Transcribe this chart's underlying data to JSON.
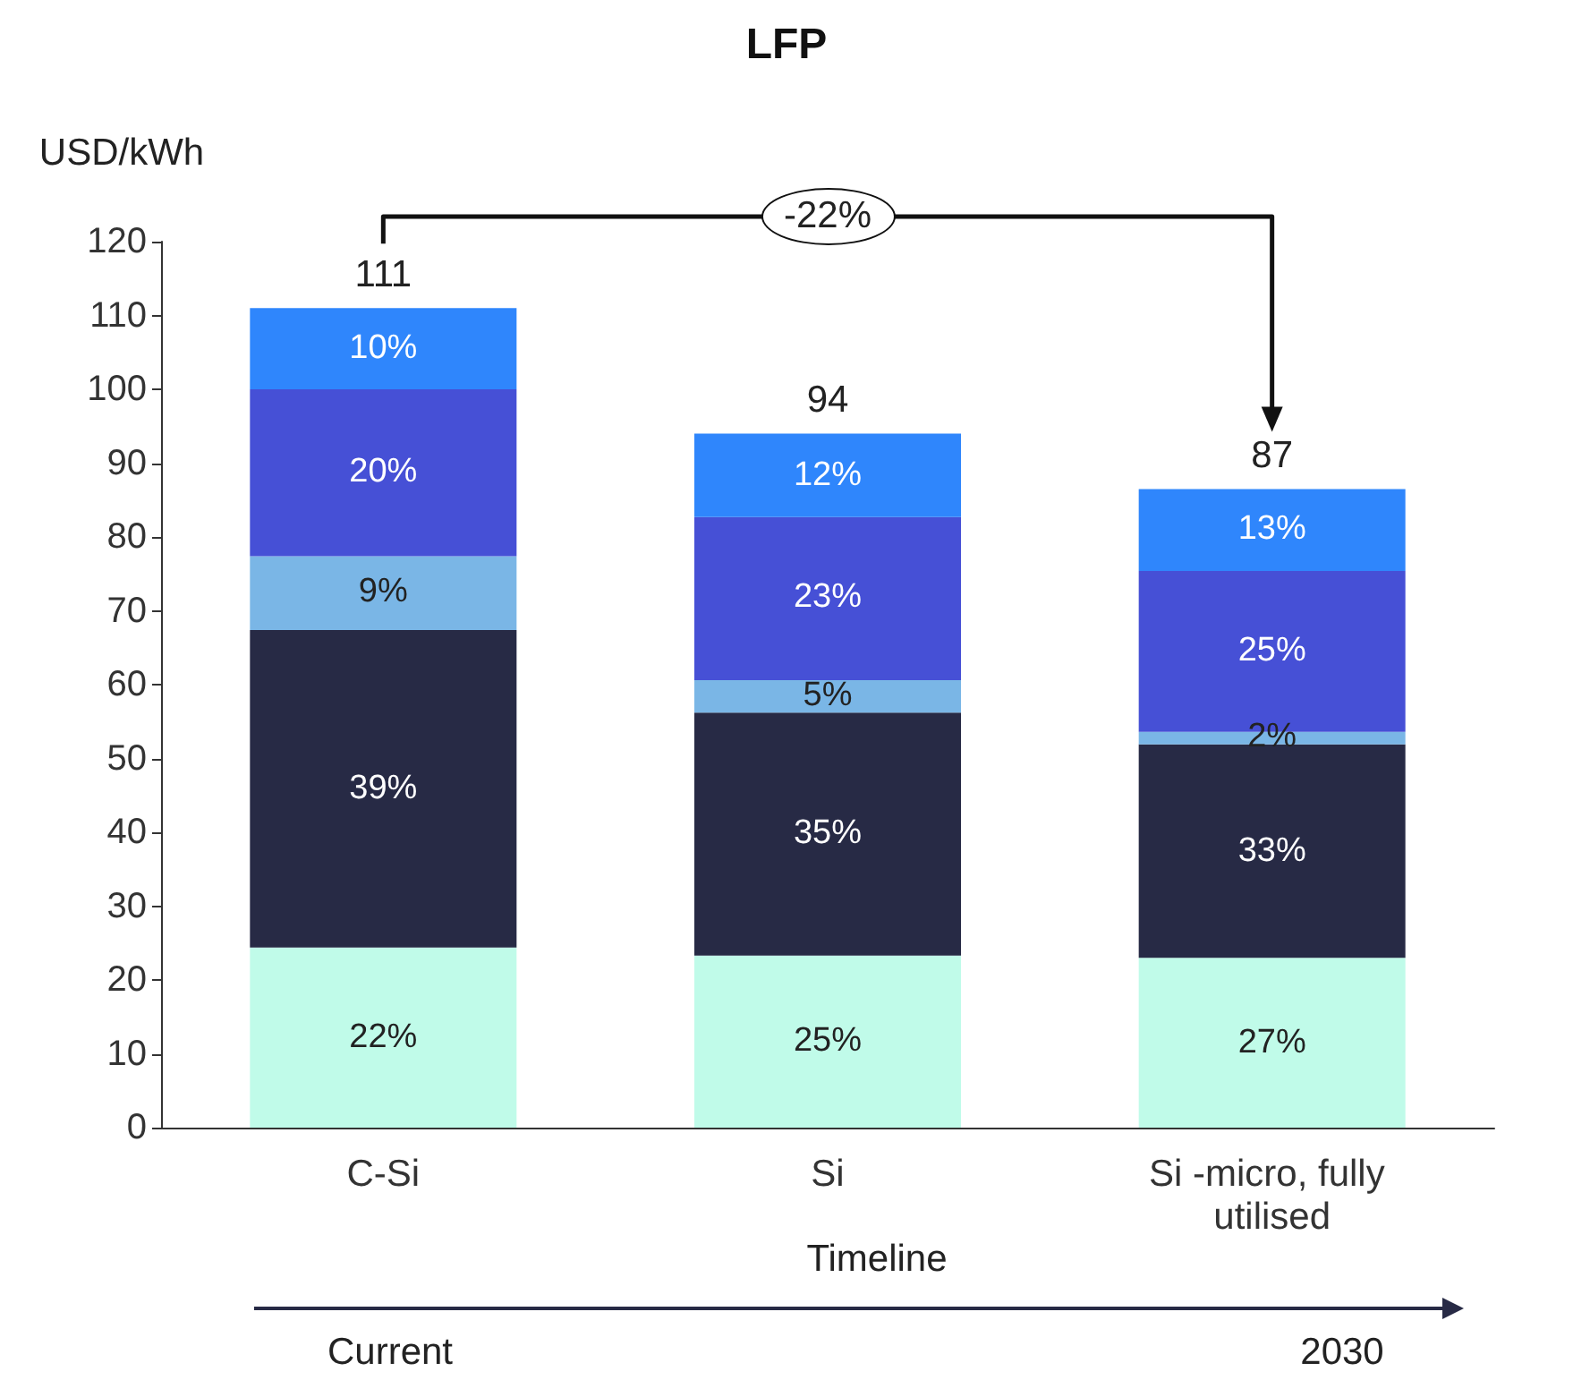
{
  "chart_data": {
    "type": "bar",
    "stacked": true,
    "title": "LFP",
    "ylabel": "USD/kWh",
    "xlabel": "Timeline",
    "categories": [
      "C-Si",
      "Si",
      "Si -micro, fully utilised"
    ],
    "series": [
      {
        "color": "#c0fbe9",
        "values": [
          24.4,
          23.3,
          23
        ]
      },
      {
        "color": "#272a45",
        "values": [
          43,
          32.9,
          28.9
        ]
      },
      {
        "color": "#7ab6e6",
        "values": [
          10,
          4.4,
          1.7
        ]
      },
      {
        "color": "#4650d6",
        "values": [
          22.6,
          22.1,
          21.8
        ]
      },
      {
        "color": "#2f86fc",
        "values": [
          11,
          11.3,
          11.1
        ]
      }
    ],
    "totals": [
      "111",
      "94",
      "87"
    ],
    "ylim": [
      0,
      120
    ],
    "yticks": [
      0,
      10,
      20,
      30,
      40,
      50,
      60,
      70,
      80,
      90,
      100,
      110,
      120
    ],
    "grid": false,
    "annotations": [
      "-22%",
      "Current",
      "2030",
      "22%",
      "39%",
      "9%",
      "20%",
      "10%",
      "25%",
      "35%",
      "5%",
      "23%",
      "12%",
      "27%",
      "33%",
      "2%",
      "25%",
      "13%"
    ]
  }
}
